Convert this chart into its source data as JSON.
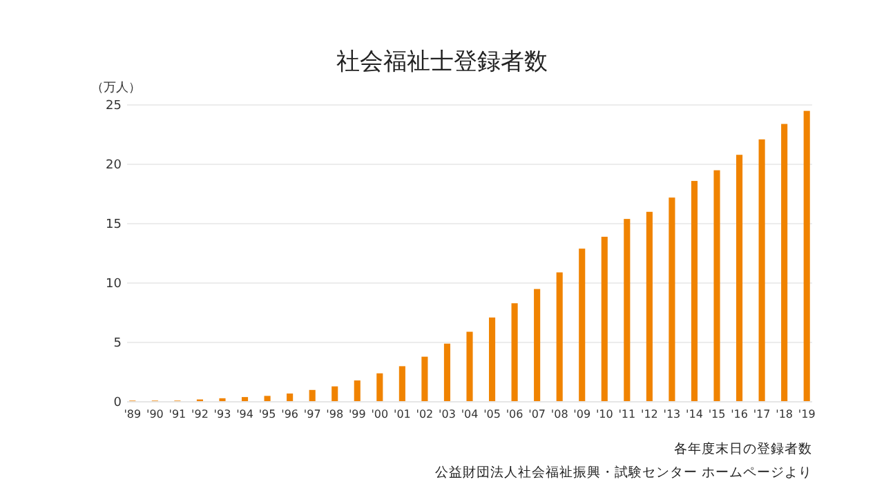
{
  "chart_data": {
    "type": "bar",
    "title": "社会福祉士登録者数",
    "ylabel": "（万人）",
    "categories": [
      "'89",
      "'90",
      "'91",
      "'92",
      "'93",
      "'94",
      "'95",
      "'96",
      "'97",
      "'98",
      "'99",
      "'00",
      "'01",
      "'02",
      "'03",
      "'04",
      "'05",
      "'06",
      "'07",
      "'08",
      "'09",
      "'10",
      "'11",
      "'12",
      "'13",
      "'14",
      "'15",
      "'16",
      "'17",
      "'18",
      "'19"
    ],
    "values": [
      0.1,
      0.1,
      0.1,
      0.2,
      0.3,
      0.4,
      0.5,
      0.7,
      1.0,
      1.3,
      1.8,
      2.4,
      3.0,
      3.8,
      4.9,
      5.9,
      7.1,
      8.3,
      9.5,
      10.9,
      12.9,
      13.9,
      15.4,
      16.0,
      17.2,
      18.6,
      19.5,
      20.8,
      22.1,
      23.4,
      24.5
    ],
    "color": "#f08300",
    "ylim": [
      0,
      25
    ],
    "yticks": [
      0,
      5,
      10,
      15,
      20,
      25
    ],
    "grid": "y",
    "annotations": [
      "各年度末日の登録者数",
      "公益財団法人社会福祉振興・試験センター ホームページより"
    ]
  }
}
